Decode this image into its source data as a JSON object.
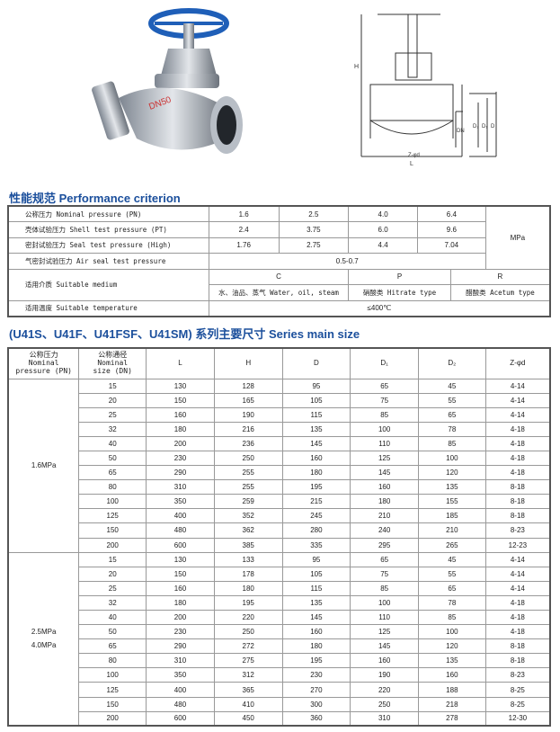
{
  "drawing_labels": {
    "H": "H",
    "L": "L",
    "DN": "DN",
    "D1": "D₁",
    "D2": "D₂",
    "D": "D",
    "Zd": "Z-φd"
  },
  "photo_marking": "DN50",
  "performance": {
    "title": "性能规范 Performance criterion",
    "rows": [
      {
        "label": "公称压力 Nominal pressure (PN)",
        "values": [
          "1.6",
          "2.5",
          "4.0",
          "6.4"
        ]
      },
      {
        "label": "壳体试验压力 Shell test pressure (PT)",
        "values": [
          "2.4",
          "3.75",
          "6.0",
          "9.6"
        ]
      },
      {
        "label": "密封试验压力 Seal test pressure (High)",
        "values": [
          "1.76",
          "2.75",
          "4.4",
          "7.04"
        ]
      }
    ],
    "unit": "MPa",
    "air_seal": {
      "label": "气密封试验压力 Air seal test pressure",
      "value": "0.5-0.7"
    },
    "medium": {
      "label": "适用介质 Suitable medium",
      "codes": [
        "C",
        "P",
        "R"
      ],
      "descriptions": [
        "水、油品、蒸气 Water, oil, steam",
        "硝酸类 Hitrate type",
        "醋酸类 Acetum type"
      ]
    },
    "temperature": {
      "label": "适用温度 Suitable temperature",
      "value": "≤400℃"
    }
  },
  "series": {
    "title": "(U41S、U41F、U41FSF、U41SM) 系列主要尺寸 Series main size",
    "headers": [
      "公称压力\nNominal\npressure (PN)",
      "公称通径\nNominal\nsize (DN)",
      "L",
      "H",
      "D",
      "D₁",
      "D₂",
      "Z-φd"
    ],
    "groups": [
      {
        "pressure": [
          "1.6MPa"
        ],
        "rows": [
          [
            "15",
            "130",
            "128",
            "95",
            "65",
            "45",
            "4-14"
          ],
          [
            "20",
            "150",
            "165",
            "105",
            "75",
            "55",
            "4-14"
          ],
          [
            "25",
            "160",
            "190",
            "115",
            "85",
            "65",
            "4-14"
          ],
          [
            "32",
            "180",
            "216",
            "135",
            "100",
            "78",
            "4-18"
          ],
          [
            "40",
            "200",
            "236",
            "145",
            "110",
            "85",
            "4-18"
          ],
          [
            "50",
            "230",
            "250",
            "160",
            "125",
            "100",
            "4-18"
          ],
          [
            "65",
            "290",
            "255",
            "180",
            "145",
            "120",
            "4-18"
          ],
          [
            "80",
            "310",
            "255",
            "195",
            "160",
            "135",
            "8-18"
          ],
          [
            "100",
            "350",
            "259",
            "215",
            "180",
            "155",
            "8-18"
          ],
          [
            "125",
            "400",
            "352",
            "245",
            "210",
            "185",
            "8-18"
          ],
          [
            "150",
            "480",
            "362",
            "280",
            "240",
            "210",
            "8-23"
          ],
          [
            "200",
            "600",
            "385",
            "335",
            "295",
            "265",
            "12-23"
          ]
        ]
      },
      {
        "pressure": [
          "2.5MPa",
          "4.0MPa"
        ],
        "rows": [
          [
            "15",
            "130",
            "133",
            "95",
            "65",
            "45",
            "4-14"
          ],
          [
            "20",
            "150",
            "178",
            "105",
            "75",
            "55",
            "4-14"
          ],
          [
            "25",
            "160",
            "180",
            "115",
            "85",
            "65",
            "4-14"
          ],
          [
            "32",
            "180",
            "195",
            "135",
            "100",
            "78",
            "4-18"
          ],
          [
            "40",
            "200",
            "220",
            "145",
            "110",
            "85",
            "4-18"
          ],
          [
            "50",
            "230",
            "250",
            "160",
            "125",
            "100",
            "4-18"
          ],
          [
            "65",
            "290",
            "272",
            "180",
            "145",
            "120",
            "8-18"
          ],
          [
            "80",
            "310",
            "275",
            "195",
            "160",
            "135",
            "8-18"
          ],
          [
            "100",
            "350",
            "312",
            "230",
            "190",
            "160",
            "8-23"
          ],
          [
            "125",
            "400",
            "365",
            "270",
            "220",
            "188",
            "8-25"
          ],
          [
            "150",
            "480",
            "410",
            "300",
            "250",
            "218",
            "8-25"
          ],
          [
            "200",
            "600",
            "450",
            "360",
            "310",
            "278",
            "12-30"
          ]
        ]
      }
    ]
  }
}
